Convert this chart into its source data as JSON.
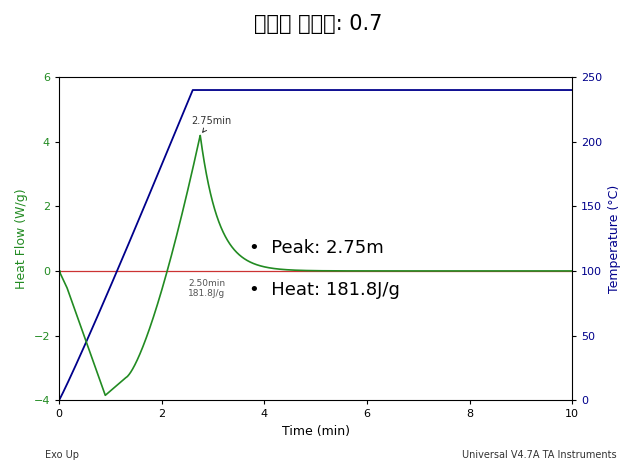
{
  "title": "경화제 당량비: 0.7",
  "title_fontsize": 15,
  "xlabel": "Time (min)",
  "ylabel_left": "Heat Flow (W/g)",
  "ylabel_right": "Temperature (°C)",
  "xlim": [
    0,
    10
  ],
  "ylim_left": [
    -4,
    6
  ],
  "ylim_right": [
    0,
    250
  ],
  "yticks_left": [
    -4,
    -2,
    0,
    2,
    4,
    6
  ],
  "yticks_right": [
    0,
    50,
    100,
    150,
    200,
    250
  ],
  "xticks": [
    0,
    2,
    4,
    6,
    8,
    10
  ],
  "background_color": "#ffffff",
  "heat_flow_color": "#228B22",
  "temp_color": "#00008B",
  "baseline_color": "#cc3333",
  "peak_label": "2.75min",
  "heat_label": "2.50min\n181.8J/g",
  "legend_peak": "Peak: 2.75m",
  "legend_heat": "Heat: 181.8J/g",
  "footer_left": "Exo Up",
  "footer_right": "Universal V4.7A TA Instruments",
  "temp_plateau": 240.0,
  "temp_ramp_end": 2.6,
  "peak_time": 2.75,
  "peak_value": 4.2,
  "baseline_temp": 100.0
}
